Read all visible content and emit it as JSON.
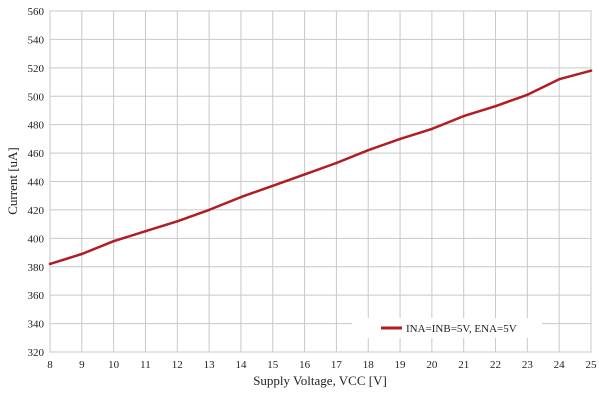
{
  "chart_data": {
    "type": "line",
    "xlabel": "Supply Voltage, VCC [V]",
    "ylabel": "Current  [uA]",
    "xlim": [
      8,
      25
    ],
    "ylim": [
      320,
      560
    ],
    "x_ticks": [
      8,
      9,
      10,
      11,
      12,
      13,
      14,
      15,
      16,
      17,
      18,
      19,
      20,
      21,
      22,
      23,
      24,
      25
    ],
    "y_ticks": [
      320,
      340,
      360,
      380,
      400,
      420,
      440,
      460,
      480,
      500,
      520,
      540,
      560
    ],
    "grid": true,
    "legend_position": "bottom-right",
    "series": [
      {
        "name": "INA=INB=5V, ENA=5V",
        "color": "#b01e23",
        "x": [
          8,
          9,
          10,
          11,
          12,
          13,
          14,
          15,
          16,
          17,
          18,
          19,
          20,
          21,
          22,
          23,
          24,
          25
        ],
        "y": [
          382,
          389,
          398,
          405,
          412,
          420,
          429,
          437,
          445,
          453,
          462,
          470,
          477,
          486,
          493,
          501,
          512,
          518
        ]
      }
    ]
  }
}
